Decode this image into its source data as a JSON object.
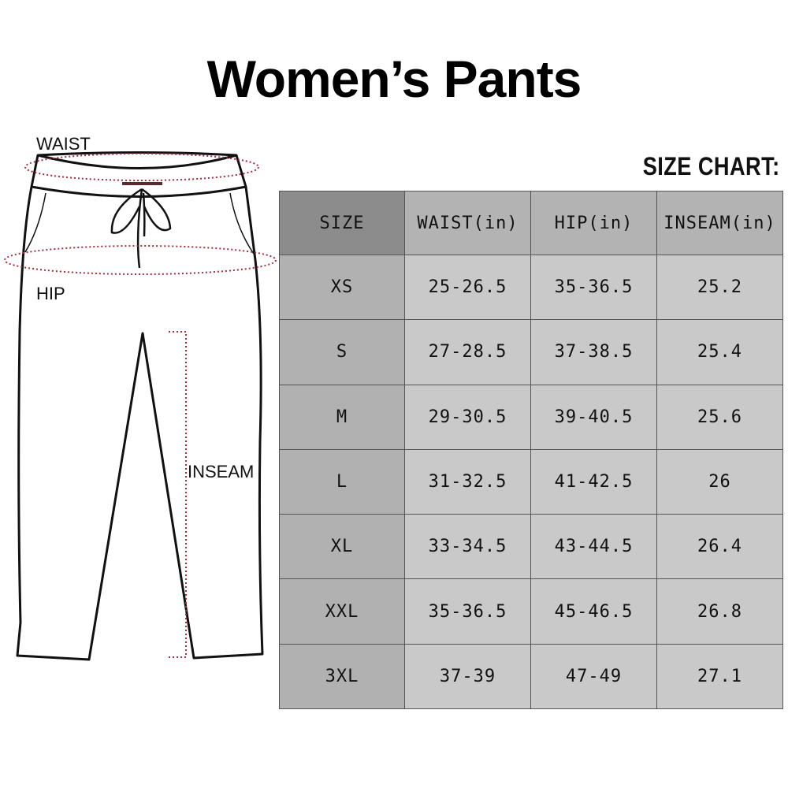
{
  "title": "Women’s Pants",
  "size_chart_label": "SIZE CHART:",
  "diagram": {
    "waist_label": "WAIST",
    "hip_label": "HIP",
    "inseam_label": "INSEAM",
    "measure_color": "#a0303a"
  },
  "table": {
    "headers": [
      "SIZE",
      "WAIST(in)",
      "HIP(in)",
      "INSEAM(in)"
    ],
    "rows": [
      [
        "XS",
        "25-26.5",
        "35-36.5",
        "25.2"
      ],
      [
        "S",
        "27-28.5",
        "37-38.5",
        "25.4"
      ],
      [
        "M",
        "29-30.5",
        "39-40.5",
        "25.6"
      ],
      [
        "L",
        "31-32.5",
        "41-42.5",
        "26"
      ],
      [
        "XL",
        "33-34.5",
        "43-44.5",
        "26.4"
      ],
      [
        "XXL",
        "35-36.5",
        "45-46.5",
        "26.8"
      ],
      [
        "3XL",
        "37-39",
        "47-49",
        "27.1"
      ]
    ]
  }
}
